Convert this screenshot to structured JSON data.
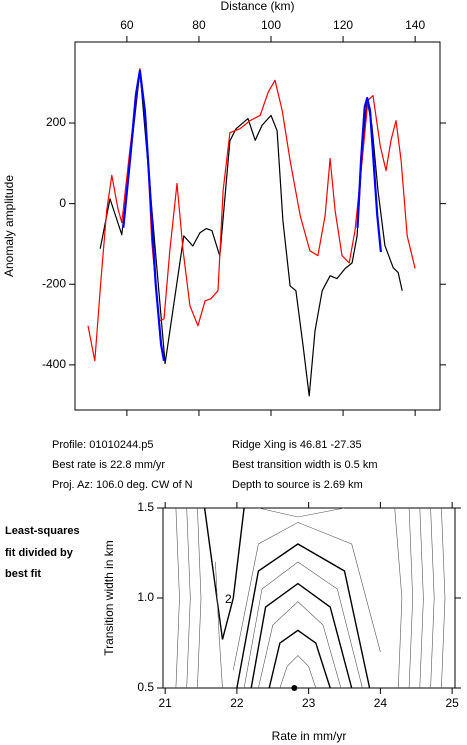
{
  "chart_data": [
    {
      "type": "line",
      "xlabel": "Distance (km)",
      "ylabel": "Anomaly amplitude",
      "xaxis_side": "top",
      "xlim": [
        45.6,
        146.9
      ],
      "ylim": [
        -512,
        401
      ],
      "xticks": [
        60,
        80,
        100,
        120,
        140
      ],
      "yticks": [
        -400,
        -200,
        0,
        200
      ],
      "series": [
        {
          "color": "#000000",
          "width": 1.2,
          "x": [
            52.6,
            55.3,
            58.6,
            63.6,
            70.6,
            75.8,
            78.3,
            80.3,
            82,
            83.6,
            85.8,
            88.6,
            90.3,
            93.6,
            95.6,
            97.5,
            100,
            101.7,
            103.3,
            105.3,
            106.9,
            108.9,
            110.6,
            112.2,
            114.2,
            116.4,
            118.3,
            120.6,
            122.5,
            123.9,
            125.3,
            126.7,
            128,
            129.7,
            131.6,
            133.9,
            135.3,
            136.4
          ],
          "values": [
            -112,
            12,
            -77,
            330,
            -397,
            -80,
            -105,
            -72,
            -62,
            -67,
            -130,
            156,
            186,
            211,
            157,
            194,
            219,
            181,
            -42,
            -204,
            -216,
            -353,
            -477,
            -316,
            -216,
            -179,
            -186,
            -161,
            -147,
            -80,
            132,
            256,
            194,
            32,
            -104,
            -159,
            -171,
            -216
          ]
        },
        {
          "color": "#ff0000",
          "width": 1.2,
          "x": [
            49.2,
            51.1,
            52.8,
            54.4,
            55.8,
            57.5,
            58.6,
            60.8,
            63.6,
            65.3,
            66.9,
            68.9,
            70.3,
            71.9,
            73.9,
            75.6,
            77.5,
            79.7,
            81.7,
            83.3,
            85.3,
            86.7,
            88.6,
            91.4,
            94.2,
            97,
            99.2,
            101.1,
            103.1,
            105.3,
            108.1,
            110.8,
            113,
            115,
            116.4,
            117.8,
            119.7,
            121.7,
            123.3,
            125.3,
            126.9,
            128.3,
            130.3,
            131.9,
            133.3,
            134.7,
            136.1,
            137.8,
            140
          ],
          "values": [
            -303,
            -390,
            -191,
            -17,
            70,
            -12,
            -47,
            132,
            335,
            206,
            -92,
            -291,
            -286,
            -117,
            50,
            -117,
            -253,
            -303,
            -241,
            -236,
            -216,
            32,
            176,
            186,
            206,
            219,
            276,
            306,
            231,
            107,
            -30,
            -117,
            -129,
            -30,
            112,
            -17,
            -129,
            -147,
            -67,
            107,
            256,
            268,
            144,
            82,
            157,
            206,
            107,
            -80,
            -161
          ]
        },
        {
          "color": "#0000ff",
          "width": 2.2,
          "x": [
            59,
            61,
            62.5,
            63.6,
            65,
            66.5,
            68,
            69.5,
            70.3
          ],
          "values": [
            -60,
            120,
            270,
            330,
            230,
            20,
            -200,
            -350,
            -390
          ]
        },
        {
          "color": "#0000ff",
          "width": 2.2,
          "x": [
            124,
            125,
            126,
            126.7,
            127.5,
            128.5,
            129.5,
            130.5
          ],
          "values": [
            -60,
            110,
            240,
            262,
            230,
            100,
            -30,
            -120
          ]
        }
      ]
    },
    {
      "type": "contour",
      "xlabel": "Rate in mm/yr",
      "ylabel": "Transition width in km",
      "xlim": [
        20.97,
        25.04
      ],
      "ylim": [
        0.5,
        1.5
      ],
      "xticks": [
        21,
        22,
        23,
        24,
        25
      ],
      "yticks": [
        {
          "value": 0.5,
          "label": "0.5"
        },
        {
          "value": 1.0,
          "label": "1.0"
        },
        {
          "value": 1.5,
          "label": "1.5"
        }
      ],
      "contours": [
        {
          "bold": false,
          "x": [
            22.6,
            22.7,
            22.85,
            23.0,
            23.1
          ],
          "y": [
            0.5,
            0.62,
            0.68,
            0.62,
            0.5
          ]
        },
        {
          "bold": true,
          "x": [
            22.45,
            22.6,
            22.85,
            23.1,
            23.3
          ],
          "y": [
            0.5,
            0.75,
            0.82,
            0.75,
            0.5
          ]
        },
        {
          "bold": false,
          "x": [
            22.3,
            22.5,
            22.85,
            23.2,
            23.45
          ],
          "y": [
            0.5,
            0.85,
            0.98,
            0.85,
            0.5
          ]
        },
        {
          "bold": true,
          "x": [
            22.2,
            22.4,
            22.85,
            23.3,
            23.6
          ],
          "y": [
            0.5,
            0.95,
            1.08,
            0.95,
            0.5
          ]
        },
        {
          "bold": false,
          "x": [
            22.1,
            22.35,
            22.85,
            23.4,
            23.75
          ],
          "y": [
            0.5,
            1.05,
            1.2,
            1.05,
            0.5
          ]
        },
        {
          "bold": true,
          "x": [
            22.0,
            22.3,
            22.85,
            23.5,
            23.85
          ],
          "y": [
            0.5,
            1.15,
            1.3,
            1.15,
            0.5
          ]
        },
        {
          "bold": false,
          "x": [
            21.95,
            22.3,
            22.85,
            23.6,
            24.0
          ],
          "y": [
            0.6,
            1.3,
            1.42,
            1.3,
            0.7
          ]
        },
        {
          "bold": false,
          "x": [
            22.3,
            22.85,
            23.5
          ],
          "y": [
            1.5,
            1.45,
            1.5
          ]
        },
        {
          "bold": true,
          "x": [
            21.55,
            21.8,
            21.95,
            22.1
          ],
          "y": [
            1.5,
            0.77,
            1.0,
            1.5
          ]
        },
        {
          "bold": false,
          "x": [
            21.15,
            21.2,
            21.15
          ],
          "y": [
            1.5,
            1.0,
            0.5
          ]
        },
        {
          "bold": false,
          "x": [
            21.3,
            21.35,
            21.3
          ],
          "y": [
            1.5,
            1.0,
            0.5
          ]
        },
        {
          "bold": false,
          "x": [
            21.45,
            21.5,
            21.45
          ],
          "y": [
            1.5,
            1.0,
            0.5
          ]
        },
        {
          "bold": false,
          "x": [
            21.7,
            21.75,
            21.8
          ],
          "y": [
            1.2,
            0.8,
            0.5
          ]
        },
        {
          "bold": false,
          "x": [
            24.2,
            24.3,
            24.25
          ],
          "y": [
            1.5,
            1.0,
            0.5
          ]
        },
        {
          "bold": false,
          "x": [
            24.4,
            24.45,
            24.4
          ],
          "y": [
            1.5,
            1.0,
            0.5
          ]
        },
        {
          "bold": false,
          "x": [
            24.55,
            24.6,
            24.55
          ],
          "y": [
            1.5,
            1.0,
            0.5
          ]
        },
        {
          "bold": false,
          "x": [
            24.7,
            24.75,
            24.7
          ],
          "y": [
            1.5,
            1.0,
            0.5
          ]
        },
        {
          "bold": false,
          "x": [
            24.85,
            24.9,
            24.85
          ],
          "y": [
            1.5,
            1.0,
            0.5
          ]
        }
      ],
      "contour_labels": [
        {
          "text": "2",
          "x": 21.88,
          "y": 0.99
        }
      ],
      "best_point": {
        "x": 22.8,
        "y": 0.5
      }
    }
  ],
  "info": {
    "profile": "Profile: 01010244.p5",
    "ridge": "Ridge Xing is 46.81 -27.35",
    "rate": "Best rate is 22.8 mm/yr",
    "width": "Best transition width is 0.5 km",
    "azimuth": "Proj. Az: 106.0 deg. CW of N",
    "depth": "Depth to source is   2.69 km"
  },
  "side_label": [
    "Least-squares",
    "fit divided by",
    "best fit"
  ]
}
